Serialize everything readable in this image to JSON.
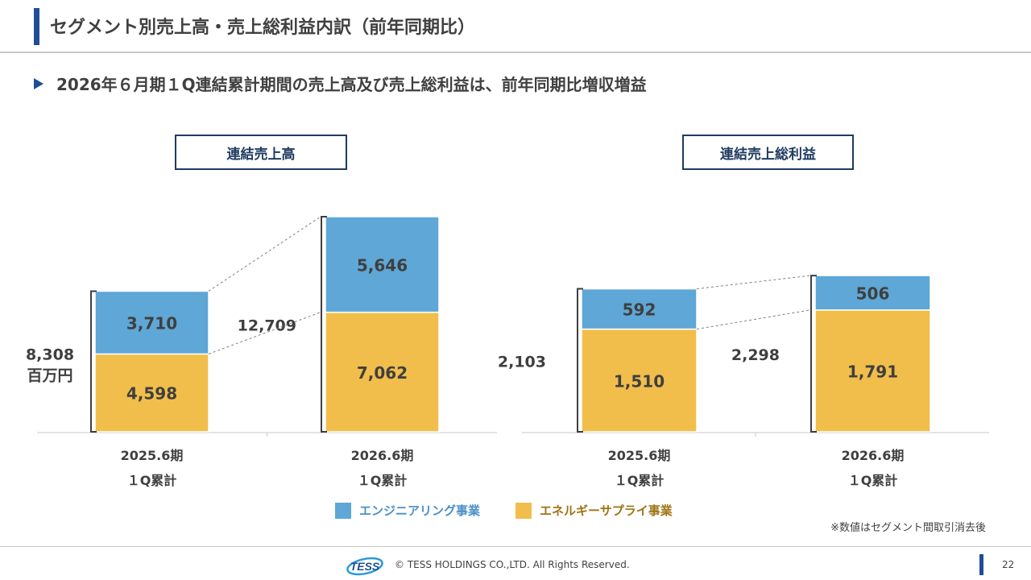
{
  "header": {
    "title": "セグメント別売上高・売上総利益内訳（前年同期比）",
    "subtitle": "2026年６月期１Q連結累計期間の売上高及び売上総利益は、前年同期比増収増益"
  },
  "colors": {
    "engineering": "#5ea7d6",
    "energy": "#f1be4b",
    "accent": "#1f4e96",
    "box_border": "#1f3b5f",
    "text": "#3f3f3f"
  },
  "chart_data": [
    {
      "type": "bar",
      "stacked": true,
      "title": "連結売上高",
      "unit": "百万円",
      "categories": [
        "2025.6期\n１Q累計",
        "2026.6期\n１Q累計"
      ],
      "series": [
        {
          "name": "エンジニアリング事業",
          "values": [
            3710,
            5646
          ]
        },
        {
          "name": "エネルギーサプライ事業",
          "values": [
            4598,
            7062
          ]
        }
      ],
      "value_labels": [
        [
          "3,710",
          "5,646"
        ],
        [
          "4,598",
          "7,062"
        ]
      ],
      "totals": [
        "8,308",
        "12,709"
      ],
      "ylim": [
        0,
        12709
      ]
    },
    {
      "type": "bar",
      "stacked": true,
      "title": "連結売上総利益",
      "categories": [
        "2025.6期\n１Q累計",
        "2026.6期\n１Q累計"
      ],
      "series": [
        {
          "name": "エンジニアリング事業",
          "values": [
            592,
            506
          ]
        },
        {
          "name": "エネルギーサプライ事業",
          "values": [
            1510,
            1791
          ]
        }
      ],
      "value_labels": [
        [
          "592",
          "506"
        ],
        [
          "1,510",
          "1,791"
        ]
      ],
      "totals": [
        "2,103",
        "2,298"
      ],
      "ylim": [
        0,
        2298
      ]
    }
  ],
  "legend": {
    "engineering": "エンジニアリング事業",
    "energy": "エネルギーサプライ事業"
  },
  "note": "※数値はセグメント間取引消去後",
  "footer": {
    "logo_text": "TESS",
    "copyright": "© TESS HOLDINGS CO.,LTD. All Rights Reserved.",
    "page": "22"
  }
}
